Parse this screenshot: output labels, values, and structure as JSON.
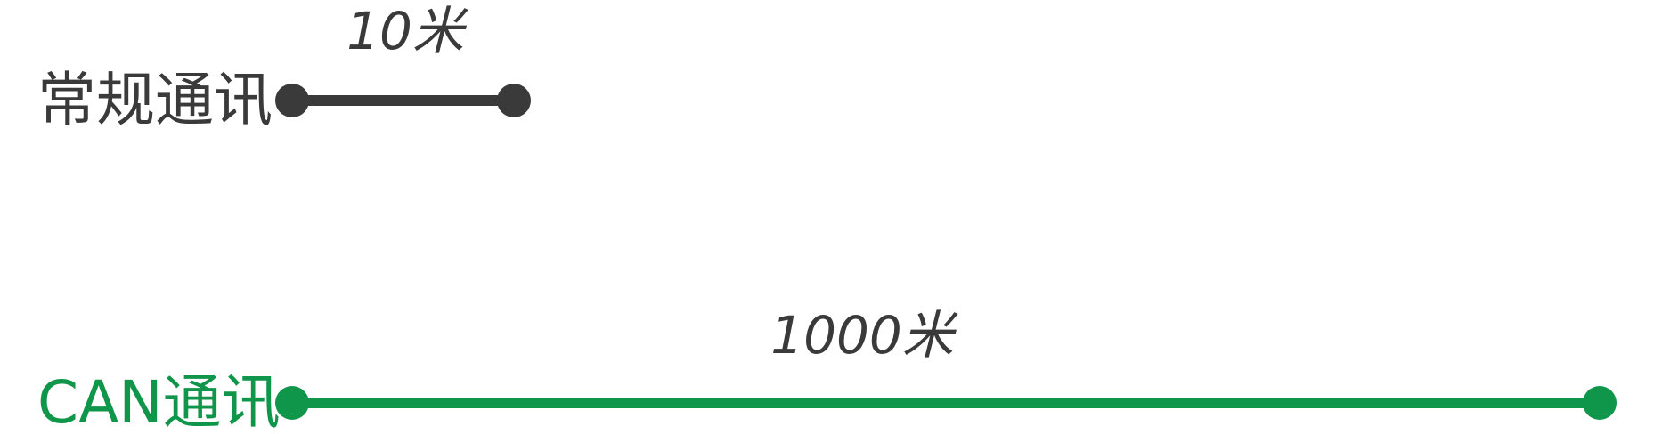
{
  "rows": [
    {
      "label": "常规通讯",
      "distance": "10米",
      "color": "#3a3a3a"
    },
    {
      "label": "CAN通讯",
      "distance": "1000米",
      "color": "#10964a"
    }
  ]
}
